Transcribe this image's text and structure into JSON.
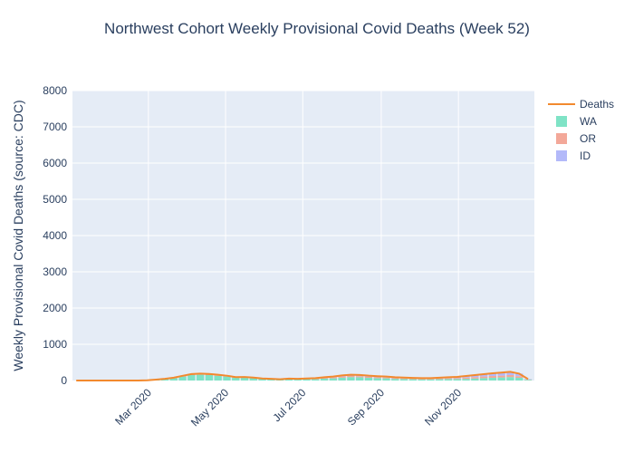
{
  "chart_data": {
    "type": "bar",
    "barmode": "stack",
    "title": "Northwest Cohort Weekly Provisional Covid Deaths (Week 52)",
    "xlabel": "",
    "ylabel": "Weekly Provisional Covid Deaths (source: CDC)",
    "ylim": [
      0,
      8000
    ],
    "yticks": [
      "0",
      "1000",
      "2000",
      "3000",
      "4000",
      "5000",
      "6000",
      "7000",
      "8000"
    ],
    "xticks": [
      "Mar 2020",
      "May 2020",
      "Jul 2020",
      "Sep 2020",
      "Nov 2020"
    ],
    "xtick_dates": [
      "2020-03-01",
      "2020-05-01",
      "2020-07-01",
      "2020-09-01",
      "2020-11-01"
    ],
    "x_range": [
      "2020-01-01",
      "2020-12-31"
    ],
    "grid": true,
    "legend_position": "right",
    "x": [
      "2020-01-04",
      "2020-01-11",
      "2020-01-18",
      "2020-01-25",
      "2020-02-01",
      "2020-02-08",
      "2020-02-15",
      "2020-02-22",
      "2020-02-29",
      "2020-03-07",
      "2020-03-14",
      "2020-03-21",
      "2020-03-28",
      "2020-04-04",
      "2020-04-11",
      "2020-04-18",
      "2020-04-25",
      "2020-05-02",
      "2020-05-09",
      "2020-05-16",
      "2020-05-23",
      "2020-05-30",
      "2020-06-06",
      "2020-06-13",
      "2020-06-20",
      "2020-06-27",
      "2020-07-04",
      "2020-07-11",
      "2020-07-18",
      "2020-07-25",
      "2020-08-01",
      "2020-08-08",
      "2020-08-15",
      "2020-08-22",
      "2020-08-29",
      "2020-09-05",
      "2020-09-12",
      "2020-09-19",
      "2020-09-26",
      "2020-10-03",
      "2020-10-10",
      "2020-10-17",
      "2020-10-24",
      "2020-10-31",
      "2020-11-07",
      "2020-11-14",
      "2020-11-21",
      "2020-11-28",
      "2020-12-05",
      "2020-12-12",
      "2020-12-19",
      "2020-12-26"
    ],
    "series": [
      {
        "name": "WA",
        "type": "bar",
        "color": "#7fe3c6",
        "values": [
          0,
          0,
          0,
          0,
          0,
          0,
          0,
          0,
          5,
          20,
          40,
          65,
          110,
          150,
          160,
          150,
          130,
          110,
          75,
          80,
          65,
          45,
          35,
          25,
          40,
          30,
          35,
          35,
          50,
          60,
          80,
          95,
          90,
          75,
          65,
          60,
          45,
          40,
          35,
          30,
          30,
          35,
          40,
          40,
          45,
          55,
          65,
          75,
          85,
          95,
          75,
          20
        ]
      },
      {
        "name": "OR",
        "type": "bar",
        "color": "#f3a899",
        "values": [
          0,
          0,
          0,
          0,
          0,
          0,
          0,
          0,
          1,
          3,
          5,
          10,
          15,
          20,
          22,
          20,
          18,
          15,
          12,
          12,
          10,
          8,
          7,
          6,
          8,
          8,
          10,
          15,
          20,
          25,
          30,
          30,
          28,
          26,
          24,
          22,
          20,
          18,
          16,
          15,
          15,
          18,
          20,
          25,
          35,
          40,
          45,
          50,
          50,
          55,
          45,
          10
        ]
      },
      {
        "name": "ID",
        "type": "bar",
        "color": "#b3b9f9",
        "values": [
          0,
          0,
          0,
          0,
          0,
          0,
          0,
          0,
          0,
          1,
          2,
          3,
          5,
          8,
          10,
          12,
          10,
          8,
          6,
          6,
          5,
          4,
          4,
          4,
          6,
          8,
          12,
          15,
          20,
          25,
          30,
          35,
          35,
          32,
          30,
          28,
          25,
          22,
          20,
          20,
          22,
          25,
          30,
          35,
          45,
          55,
          65,
          75,
          85,
          90,
          70,
          10
        ]
      },
      {
        "name": "Deaths",
        "type": "line",
        "color": "#f2892e",
        "values": [
          0,
          0,
          0,
          0,
          0,
          0,
          0,
          0,
          6,
          24,
          47,
          78,
          130,
          178,
          192,
          182,
          158,
          133,
          93,
          98,
          80,
          57,
          46,
          35,
          54,
          46,
          57,
          65,
          90,
          110,
          140,
          160,
          153,
          133,
          119,
          110,
          90,
          80,
          71,
          65,
          67,
          78,
          90,
          100,
          125,
          150,
          175,
          200,
          220,
          240,
          190,
          40
        ]
      }
    ],
    "legend": [
      "Deaths",
      "WA",
      "OR",
      "ID"
    ]
  }
}
